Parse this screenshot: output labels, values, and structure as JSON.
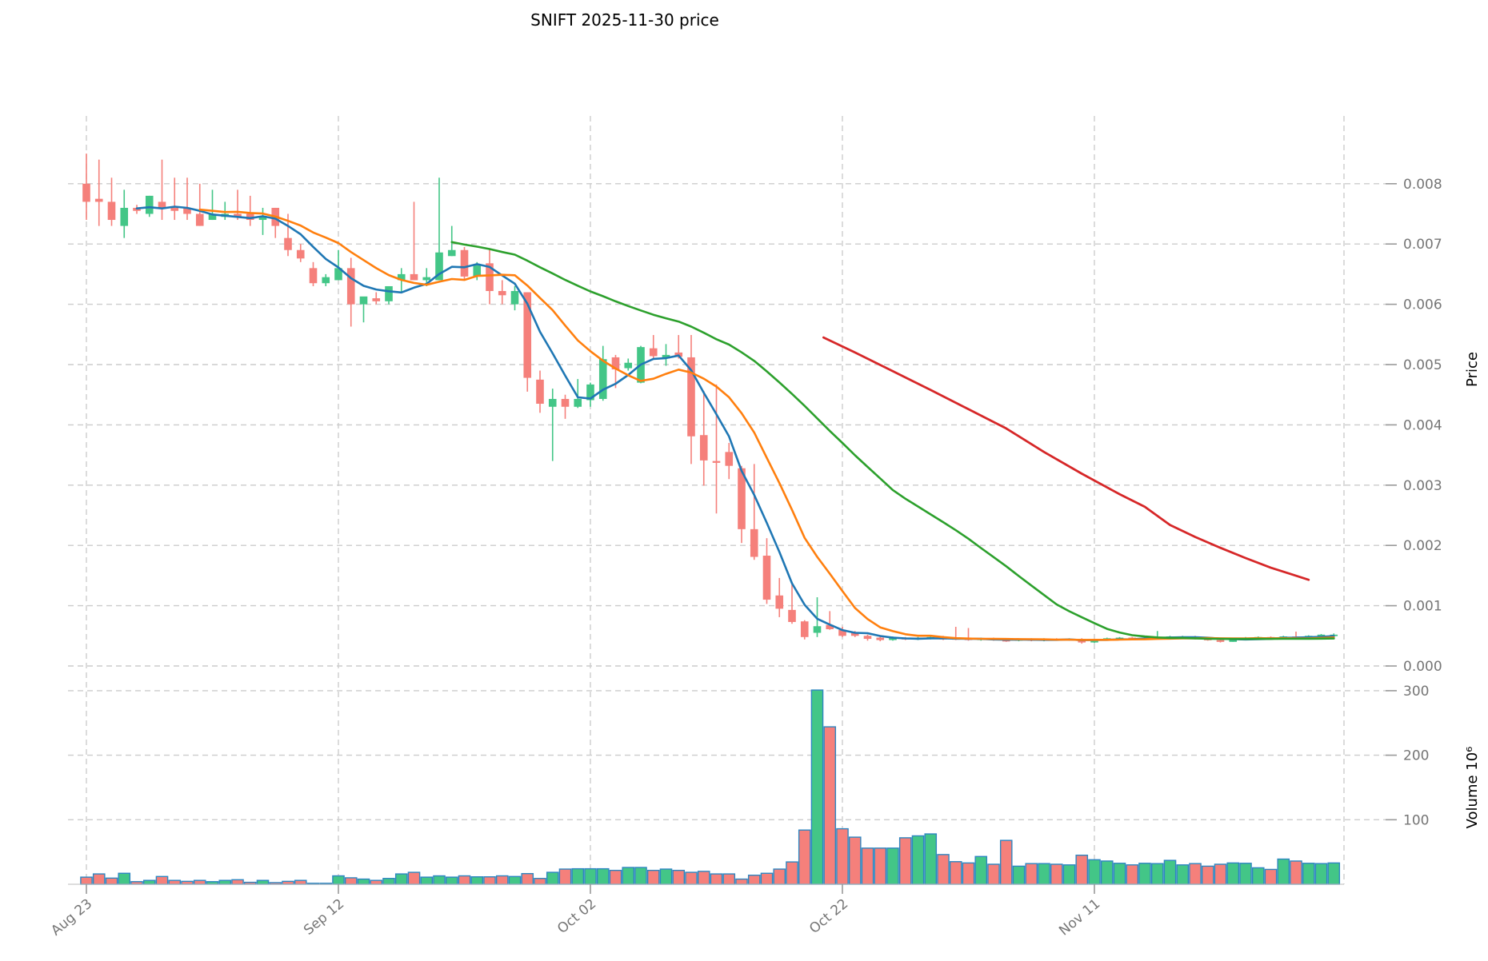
{
  "title": "SNIFT  2025-11-30  price",
  "colors": {
    "up": "#43c687",
    "down": "#f5807b",
    "volume_edge": "#2e86c1",
    "ma_fast": "#1f77b4",
    "ma_mid": "#ff7f0e",
    "ma_slow": "#2ca02c",
    "trend_line": "#d62728",
    "grid": "#cccccc",
    "tick_label": "#757575",
    "axis_label": "#000000"
  },
  "chart_data": {
    "type": "candlestick_with_volume",
    "title": "SNIFT  2025-11-30  price",
    "price_axis": {
      "label": "Price",
      "ticks": [
        0,
        0.001,
        0.002,
        0.003,
        0.004,
        0.005,
        0.006,
        0.007,
        0.008
      ],
      "ylim": [
        0,
        0.0088
      ]
    },
    "volume_axis": {
      "label": "Volume  10⁶",
      "ticks": [
        100,
        200,
        300
      ],
      "ylim": [
        0,
        330
      ]
    },
    "x_tick_labels": [
      "Aug 23",
      "Sep 12",
      "Oct 02",
      "Oct 22",
      "Nov 11"
    ],
    "x_tick_indices": [
      0,
      20,
      40,
      60,
      80
    ],
    "num_bars": 100,
    "grid": "dashed",
    "candles_format": [
      "open",
      "high",
      "low",
      "close",
      "volume_millions"
    ],
    "candles": [
      [
        0.008,
        0.0085,
        0.0074,
        0.0077,
        11
      ],
      [
        0.00775,
        0.0084,
        0.0073,
        0.0077,
        16
      ],
      [
        0.0077,
        0.0081,
        0.0073,
        0.0074,
        9.5
      ],
      [
        0.0073,
        0.0079,
        0.0071,
        0.0076,
        17
      ],
      [
        0.0076,
        0.00765,
        0.0075,
        0.00755,
        4
      ],
      [
        0.0075,
        0.0078,
        0.00745,
        0.0078,
        6
      ],
      [
        0.0077,
        0.0084,
        0.0074,
        0.0076,
        12
      ],
      [
        0.0076,
        0.0081,
        0.0074,
        0.00755,
        6
      ],
      [
        0.0076,
        0.0081,
        0.0074,
        0.0075,
        4.5
      ],
      [
        0.0075,
        0.008,
        0.0073,
        0.0073,
        6
      ],
      [
        0.0074,
        0.0079,
        0.0074,
        0.0075,
        4
      ],
      [
        0.00745,
        0.0077,
        0.0074,
        0.0075,
        6
      ],
      [
        0.0075,
        0.0079,
        0.0074,
        0.00745,
        7
      ],
      [
        0.0075,
        0.0078,
        0.0073,
        0.0074,
        3
      ],
      [
        0.0074,
        0.0076,
        0.00715,
        0.00745,
        6
      ],
      [
        0.0076,
        0.0076,
        0.0071,
        0.0073,
        2.5
      ],
      [
        0.0071,
        0.0075,
        0.0068,
        0.0069,
        4.5
      ],
      [
        0.0069,
        0.007,
        0.0067,
        0.00676,
        6
      ],
      [
        0.0066,
        0.0067,
        0.0063,
        0.00635,
        1.5
      ],
      [
        0.00635,
        0.0065,
        0.0063,
        0.00645,
        1.5
      ],
      [
        0.0064,
        0.0069,
        0.0064,
        0.0066,
        13
      ],
      [
        0.0066,
        0.00677,
        0.00563,
        0.006,
        10
      ],
      [
        0.006,
        0.0061,
        0.0057,
        0.00613,
        8
      ],
      [
        0.0061,
        0.0062,
        0.006,
        0.00605,
        6
      ],
      [
        0.00605,
        0.0063,
        0.006,
        0.0063,
        9
      ],
      [
        0.0064,
        0.0066,
        0.0062,
        0.0065,
        16
      ],
      [
        0.0065,
        0.0077,
        0.0064,
        0.0064,
        18.5
      ],
      [
        0.0064,
        0.0066,
        0.0063,
        0.00645,
        11
      ],
      [
        0.0064,
        0.0081,
        0.0064,
        0.00686,
        13
      ],
      [
        0.0068,
        0.0073,
        0.0068,
        0.0069,
        11
      ],
      [
        0.0069,
        0.00695,
        0.0064,
        0.00646,
        13
      ],
      [
        0.00646,
        0.0067,
        0.0064,
        0.00666,
        11.5
      ],
      [
        0.00668,
        0.00693,
        0.006,
        0.00622,
        11.5
      ],
      [
        0.00622,
        0.0064,
        0.006,
        0.00615,
        13
      ],
      [
        0.006,
        0.0063,
        0.0059,
        0.00622,
        12
      ],
      [
        0.0062,
        0.0062,
        0.00455,
        0.00478,
        16.5
      ],
      [
        0.00475,
        0.0049,
        0.0042,
        0.00435,
        9
      ],
      [
        0.0043,
        0.0046,
        0.0034,
        0.00443,
        18.5
      ],
      [
        0.00443,
        0.0045,
        0.0041,
        0.0043,
        23.5
      ],
      [
        0.0043,
        0.00476,
        0.00428,
        0.00443,
        24
      ],
      [
        0.00441,
        0.0047,
        0.0043,
        0.00467,
        24
      ],
      [
        0.00443,
        0.00531,
        0.0044,
        0.00509,
        24
      ],
      [
        0.00512,
        0.00516,
        0.00461,
        0.00492,
        21.5
      ],
      [
        0.00494,
        0.0051,
        0.0049,
        0.00503,
        26
      ],
      [
        0.0047,
        0.00531,
        0.00469,
        0.00529,
        26
      ],
      [
        0.00527,
        0.00549,
        0.0051,
        0.00514,
        21.5
      ],
      [
        0.0051,
        0.00534,
        0.00498,
        0.00516,
        23.5
      ],
      [
        0.0052,
        0.00549,
        0.0051,
        0.00513,
        21.5
      ],
      [
        0.00512,
        0.00549,
        0.00335,
        0.00381,
        18.5
      ],
      [
        0.00383,
        0.00456,
        0.00299,
        0.00341,
        20
      ],
      [
        0.0034,
        0.00467,
        0.00253,
        0.00337,
        16
      ],
      [
        0.00355,
        0.0037,
        0.0031,
        0.00332,
        16
      ],
      [
        0.00328,
        0.00332,
        0.00204,
        0.00227,
        8
      ],
      [
        0.00227,
        0.00335,
        0.00176,
        0.00181,
        14
      ],
      [
        0.00183,
        0.00212,
        0.00103,
        0.0011,
        17
      ],
      [
        0.00117,
        0.00146,
        0.00081,
        0.00095,
        23.5
      ],
      [
        0.00093,
        0.00137,
        0.0007,
        0.00073,
        34.6
      ],
      [
        0.00074,
        0.00076,
        0.00044,
        0.00048,
        84
      ],
      [
        0.00055,
        0.00114,
        0.00048,
        0.00066,
        301
      ],
      [
        0.00068,
        0.00091,
        0.0006,
        0.00061,
        244
      ],
      [
        0.0006,
        0.00065,
        0.00048,
        0.0005,
        86
      ],
      [
        0.00056,
        0.00058,
        0.00048,
        0.0005,
        73
      ],
      [
        0.0005,
        0.00052,
        0.00042,
        0.00045,
        56
      ],
      [
        0.00047,
        0.00049,
        0.00041,
        0.00043,
        56
      ],
      [
        0.00043,
        0.00049,
        0.00042,
        0.00047,
        56
      ],
      [
        0.00047,
        0.00048,
        0.00043,
        0.00044,
        72
      ],
      [
        0.00044,
        0.00048,
        0.00043,
        0.00047,
        75
      ],
      [
        0.00045,
        0.00049,
        0.00044,
        0.00048,
        78
      ],
      [
        0.00048,
        0.0005,
        0.00043,
        0.00044,
        46
      ],
      [
        0.00046,
        0.00065,
        0.00043,
        0.00044,
        35
      ],
      [
        0.00046,
        0.00063,
        0.00042,
        0.00043,
        33
      ],
      [
        0.00043,
        0.00047,
        0.00042,
        0.00046,
        43
      ],
      [
        0.00046,
        0.00047,
        0.00042,
        0.00043,
        31
      ],
      [
        0.00043,
        0.00046,
        0.0004,
        0.00042,
        68
      ],
      [
        0.00042,
        0.00046,
        0.00041,
        0.00045,
        28
      ],
      [
        0.00045,
        0.00046,
        0.00041,
        0.00042,
        32
      ],
      [
        0.00042,
        0.00046,
        0.00041,
        0.00045,
        32
      ],
      [
        0.00045,
        0.00046,
        0.00042,
        0.00043,
        31
      ],
      [
        0.00043,
        0.00046,
        0.00042,
        0.00045,
        30
      ],
      [
        0.00045,
        0.00046,
        0.00037,
        0.00039,
        45
      ],
      [
        0.00039,
        0.00045,
        0.00038,
        0.00044,
        38
      ],
      [
        0.00044,
        0.00047,
        0.00043,
        0.00046,
        36
      ],
      [
        0.00046,
        0.00048,
        0.00044,
        0.00047,
        32.5
      ],
      [
        0.00047,
        0.00048,
        0.00044,
        0.00045,
        30
      ],
      [
        0.00045,
        0.00048,
        0.00044,
        0.00047,
        32.5
      ],
      [
        0.00047,
        0.00058,
        0.00045,
        0.00048,
        32
      ],
      [
        0.00048,
        0.0005,
        0.00046,
        0.00049,
        37
      ],
      [
        0.00048,
        0.0005,
        0.00046,
        0.00049,
        30
      ],
      [
        0.00049,
        0.0005,
        0.00044,
        0.00045,
        32
      ],
      [
        0.00045,
        0.00046,
        0.00042,
        0.00043,
        28
      ],
      [
        0.00043,
        0.00044,
        0.00039,
        0.0004,
        31
      ],
      [
        0.0004,
        0.00046,
        0.0004,
        0.00045,
        33
      ],
      [
        0.00045,
        0.00048,
        0.00044,
        0.00047,
        32.5
      ],
      [
        0.00047,
        0.00049,
        0.00045,
        0.00048,
        25.5
      ],
      [
        0.00048,
        0.00049,
        0.00044,
        0.00045,
        23
      ],
      [
        0.00045,
        0.0005,
        0.00044,
        0.00049,
        39
      ],
      [
        0.00049,
        0.00057,
        0.00045,
        0.00046,
        36
      ],
      [
        0.00046,
        0.00051,
        0.00045,
        0.0005,
        32.5
      ],
      [
        0.0005,
        0.00053,
        0.00047,
        0.00052,
        32
      ],
      [
        0.0005,
        0.00054,
        0.00048,
        0.00052,
        33
      ]
    ],
    "moving_averages": [
      {
        "name": "mav5",
        "window": 5,
        "color_key": "ma_fast"
      },
      {
        "name": "mav10",
        "window": 10,
        "color_key": "ma_mid"
      },
      {
        "name": "mav30",
        "window": 30,
        "color_key": "ma_slow"
      }
    ],
    "trend_line": {
      "color_key": "trend_line",
      "points": [
        [
          58.5,
          0.00545
        ],
        [
          61,
          0.0052
        ],
        [
          64,
          0.00489
        ],
        [
          67,
          0.00458
        ],
        [
          70,
          0.00426
        ],
        [
          73,
          0.00394
        ],
        [
          76,
          0.00355
        ],
        [
          79,
          0.00319
        ],
        [
          82,
          0.00285
        ],
        [
          84,
          0.00264
        ],
        [
          86,
          0.00234
        ],
        [
          88,
          0.00214
        ],
        [
          90,
          0.00196
        ],
        [
          92,
          0.00179
        ],
        [
          94,
          0.00163
        ],
        [
          95.5,
          0.00153
        ],
        [
          97,
          0.00143
        ]
      ]
    }
  }
}
